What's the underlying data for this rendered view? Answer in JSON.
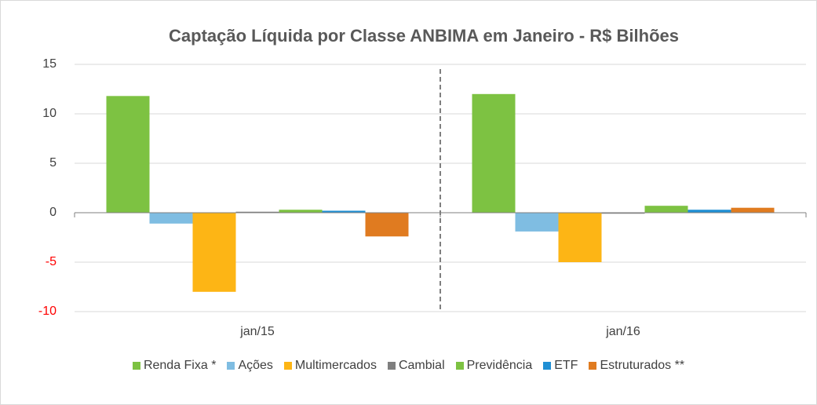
{
  "chart_data": {
    "type": "bar",
    "title": "Captação Líquida por Classe ANBIMA em Janeiro - R$ Bilhões",
    "categories": [
      "jan/15",
      "jan/16"
    ],
    "series": [
      {
        "name": "Renda Fixa *",
        "color": "#7dc242",
        "values": [
          11.8,
          12.0
        ]
      },
      {
        "name": "Ações",
        "color": "#7fbde2",
        "values": [
          -1.1,
          -1.9
        ]
      },
      {
        "name": "Multimercados",
        "color": "#fdb515",
        "values": [
          -8.0,
          -5.0
        ]
      },
      {
        "name": "Cambial",
        "color": "#7f7f7f",
        "values": [
          0.1,
          -0.1
        ]
      },
      {
        "name": "Previdência",
        "color": "#7dc242",
        "values": [
          0.3,
          0.7
        ]
      },
      {
        "name": "ETF",
        "color": "#1f8fd4",
        "values": [
          0.2,
          0.3
        ]
      },
      {
        "name": "Estruturados **",
        "color": "#e07b20",
        "values": [
          -2.4,
          0.5
        ]
      }
    ],
    "ylim": [
      -10,
      15
    ],
    "yticks": [
      -10,
      -5,
      0,
      5,
      10,
      15
    ],
    "grid": true,
    "negative_tick_color": "#ff0000",
    "legend": "bottom"
  }
}
